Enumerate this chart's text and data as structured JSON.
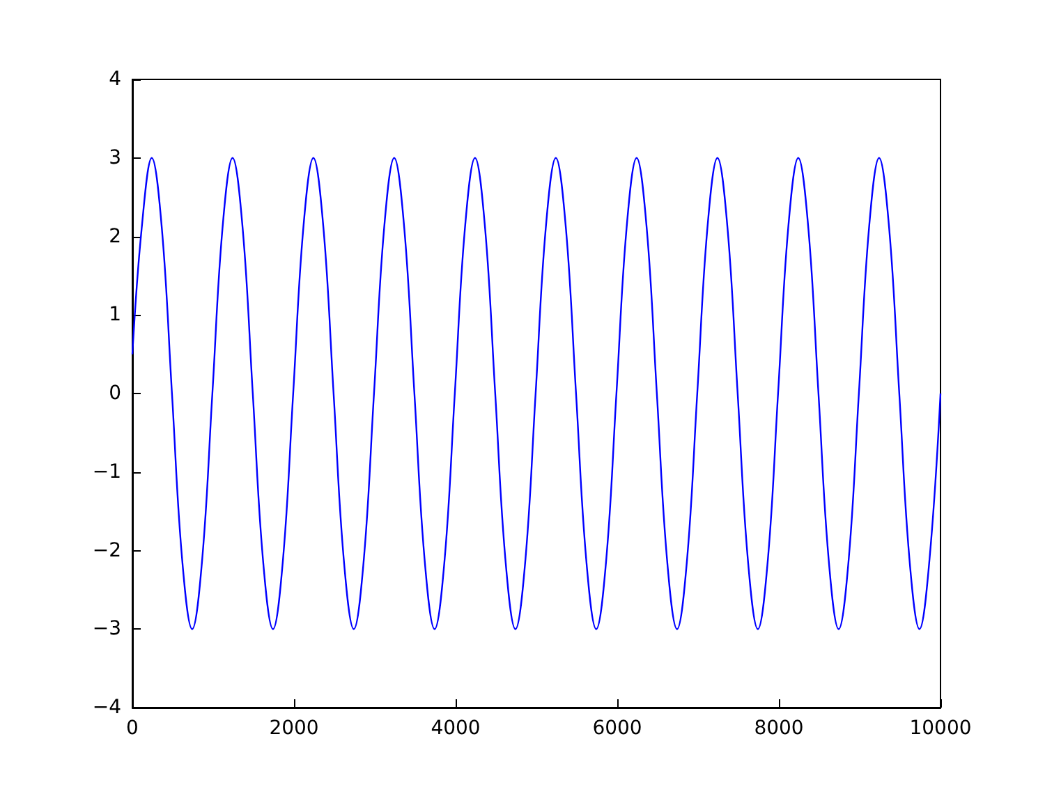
{
  "chart_data": {
    "type": "line",
    "x": [
      0,
      115,
      240,
      365,
      490,
      615,
      740,
      865,
      990,
      1115,
      1240,
      1365,
      1490,
      1615,
      1740,
      1865,
      1990,
      2115,
      2240,
      2365,
      2490,
      2615,
      2740,
      2865,
      2990,
      3115,
      3240,
      3365,
      3490,
      3615,
      3740,
      3865,
      3990,
      4115,
      4240,
      4365,
      4490,
      4615,
      4740,
      4865,
      4990,
      5115,
      5240,
      5365,
      5490,
      5615,
      5740,
      5865,
      5990,
      6115,
      6240,
      6365,
      6490,
      6615,
      6740,
      6865,
      6990,
      7115,
      7240,
      7365,
      7490,
      7615,
      7740,
      7865,
      7990,
      8115,
      8240,
      8365,
      8490,
      8615,
      8740,
      8865,
      8990,
      9115,
      9240,
      9365,
      9490,
      9615,
      9740,
      9865,
      10000
    ],
    "series": [
      {
        "color": "#0000ff",
        "values": [
          0.5,
          2.1,
          3,
          2.1,
          0,
          -2.1,
          -3,
          -2.1,
          0,
          2.1,
          3,
          2.1,
          0,
          -2.1,
          -3,
          -2.1,
          0,
          2.1,
          3,
          2.1,
          0,
          -2.1,
          -3,
          -2.1,
          0,
          2.1,
          3,
          2.1,
          0,
          -2.1,
          -3,
          -2.1,
          0,
          2.1,
          3,
          2.1,
          0,
          -2.1,
          -3,
          -2.1,
          0,
          2.1,
          3,
          2.1,
          0,
          -2.1,
          -3,
          -2.1,
          0,
          2.1,
          3,
          2.1,
          0,
          -2.1,
          -3,
          -2.1,
          0,
          2.1,
          3,
          2.1,
          0,
          -2.1,
          -3,
          -2.1,
          0,
          2.1,
          3,
          2.1,
          0,
          -2.1,
          -3,
          -2.1,
          0,
          2.1,
          3,
          2.1,
          0,
          -2.1,
          -3,
          -2.1,
          0
        ]
      }
    ],
    "xlim": [
      0,
      10000
    ],
    "xticks": [
      0,
      2000,
      4000,
      6000,
      8000,
      10000
    ],
    "ylim": [
      -4,
      4
    ],
    "yticks": [
      -4,
      -3,
      -2,
      -1,
      0,
      1,
      2,
      3,
      4
    ],
    "grid": false
  }
}
